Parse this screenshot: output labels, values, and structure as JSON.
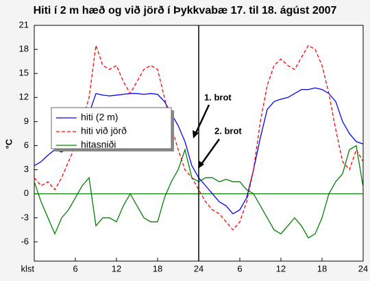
{
  "chart_data": {
    "type": "line",
    "title": "Hiti í 2 m hæð og við jörð í Þykkvabæ 17. til 18. ágúst 2007",
    "y_label": "°C",
    "x": [
      0,
      1,
      2,
      3,
      4,
      5,
      6,
      7,
      8,
      9,
      10,
      11,
      12,
      13,
      14,
      15,
      16,
      17,
      18,
      19,
      20,
      21,
      22,
      23,
      24,
      25,
      26,
      27,
      28,
      29,
      30,
      31,
      32,
      33,
      34,
      35,
      36,
      37,
      38,
      39,
      40,
      41,
      42,
      43,
      44,
      45,
      46,
      47,
      48
    ],
    "series": [
      {
        "name": "hiti (2 m)",
        "color": "#0000ff",
        "linestyle": "solid",
        "values": [
          3.5,
          4,
          4.8,
          5.5,
          5.2,
          5.8,
          6.5,
          8,
          10,
          12.5,
          12.3,
          12.2,
          12.3,
          12.4,
          12.5,
          12.5,
          12.4,
          12.5,
          12.4,
          11.5,
          10,
          8.5,
          6.5,
          3.5,
          2,
          1,
          0,
          -1,
          -1.5,
          -2.5,
          -2,
          -0.5,
          3,
          7,
          10.5,
          11.5,
          11.8,
          12,
          12.5,
          13,
          13,
          13.2,
          13,
          12.5,
          11.5,
          9,
          7.5,
          6.5,
          6.2
        ]
      },
      {
        "name": "hiti við jörð",
        "color": "#ff0000",
        "linestyle": "dashed",
        "values": [
          2,
          1,
          1.5,
          0.5,
          2,
          4,
          6,
          9,
          12,
          18.5,
          16,
          15.5,
          16,
          14,
          12.5,
          14,
          15.5,
          16,
          15.5,
          12,
          8.5,
          5.5,
          3,
          2,
          0.5,
          -1,
          -2,
          -2.5,
          -3.5,
          -4.5,
          -3.5,
          -1,
          3,
          9,
          13.5,
          16,
          16.8,
          16,
          15.5,
          17,
          18.5,
          18,
          16,
          12.5,
          8,
          4,
          3,
          5.5,
          4
        ]
      },
      {
        "name": "hitasniði",
        "color": "#008000",
        "linestyle": "solid",
        "values": [
          1.5,
          -1,
          -3,
          -5,
          -3,
          -2,
          -0.5,
          1,
          2,
          -4,
          -3,
          -3,
          -3.5,
          -1.5,
          0,
          -1.5,
          -3,
          -3.5,
          -3.5,
          -0.5,
          1.5,
          3,
          5.5,
          2,
          1.5,
          2,
          2,
          1.5,
          1.8,
          1.5,
          1.5,
          0.5,
          0,
          -1.5,
          -3,
          -4.5,
          -5,
          -4,
          -3,
          -4,
          -5.5,
          -5,
          -3,
          0,
          1.5,
          2.5,
          5.5,
          6,
          0.8
        ]
      }
    ],
    "xlim": [
      0,
      48
    ],
    "xticks": [
      {
        "value": 0,
        "label": "klst"
      },
      6,
      12,
      18,
      24,
      {
        "value": 30,
        "label": "6"
      },
      {
        "value": 36,
        "label": "12"
      },
      {
        "value": 42,
        "label": "18"
      },
      {
        "value": 48,
        "label": "24"
      }
    ],
    "ylim": [
      -8.4,
      21
    ],
    "yticks": [
      -6,
      -3,
      0,
      3,
      6,
      9,
      12,
      15,
      18,
      21
    ],
    "hline": 0,
    "vline": 24,
    "annotations": [
      "1. brot",
      "2. brot"
    ]
  }
}
